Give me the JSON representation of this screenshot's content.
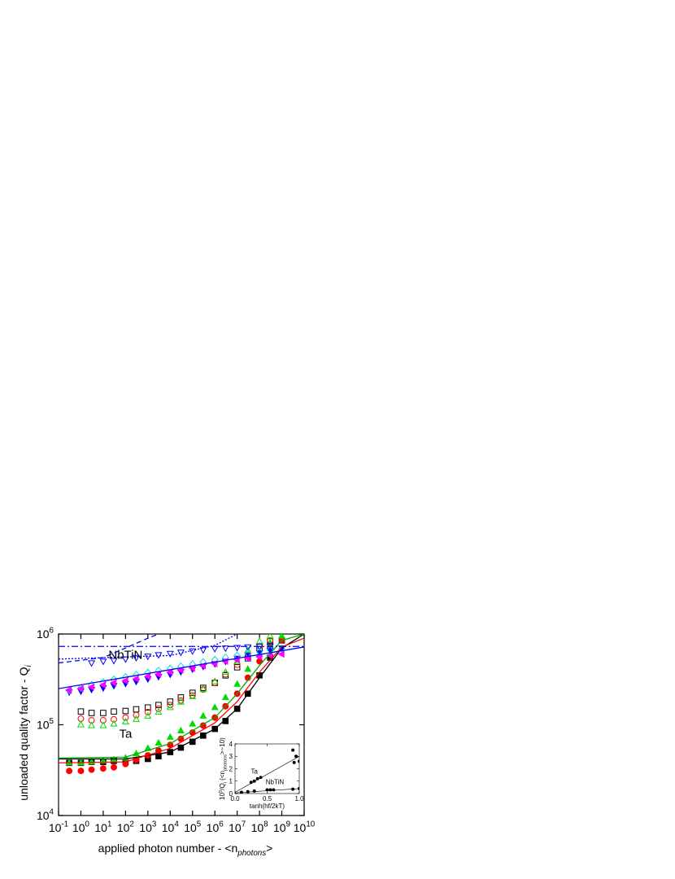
{
  "chart_data": [
    {
      "type": "scatter",
      "log_x": true,
      "log_y": true,
      "xlabel": [
        "applied photon number - <n",
        "photons",
        ">"
      ],
      "ylabel": [
        "unloaded quality factor - Q",
        "i"
      ],
      "xlim": [
        0.1,
        10000000000
      ],
      "ylim": [
        10000,
        1000000
      ],
      "xticks": [
        {
          "value": 0.1,
          "label": "10",
          "exp": "-1"
        },
        {
          "value": 1,
          "label": "10",
          "exp": "0"
        },
        {
          "value": 10,
          "label": "10",
          "exp": "1"
        },
        {
          "value": 100,
          "label": "10",
          "exp": "2"
        },
        {
          "value": 1000,
          "label": "10",
          "exp": "3"
        },
        {
          "value": 10000,
          "label": "10",
          "exp": "4"
        },
        {
          "value": 100000,
          "label": "10",
          "exp": "5"
        },
        {
          "value": 1000000,
          "label": "10",
          "exp": "6"
        },
        {
          "value": 10000000,
          "label": "10",
          "exp": "7"
        },
        {
          "value": 100000000,
          "label": "10",
          "exp": "8"
        },
        {
          "value": 1000000000,
          "label": "10",
          "exp": "9"
        },
        {
          "value": 10000000000,
          "label": "10",
          "exp": "10"
        }
      ],
      "yticks": [
        {
          "value": 10000,
          "label": "10",
          "exp": "4"
        },
        {
          "value": 100000,
          "label": "10",
          "exp": "5"
        },
        {
          "value": 1000000,
          "label": "10",
          "exp": "6"
        }
      ],
      "annotations": [
        {
          "text": "NbTiN",
          "x": 100,
          "y": 530000
        },
        {
          "text": "Ta",
          "x": 100,
          "y": 72000
        }
      ],
      "x": [
        0.3,
        1,
        3,
        10,
        30,
        100,
        300,
        1000,
        3000,
        10000,
        30000,
        100000,
        300000,
        1000000,
        3000000,
        10000000,
        30000000,
        100000000,
        300000000,
        1000000000
      ],
      "series": [
        {
          "marker": "square",
          "filled": true,
          "color": "#000000",
          "values": [
            38000,
            38000,
            39000,
            39000,
            40000,
            39000,
            40000,
            42000,
            45000,
            50000,
            56000,
            65000,
            76000,
            90000,
            110000,
            150000,
            220000,
            350000,
            550000,
            850000
          ]
        },
        {
          "marker": "circle",
          "filled": true,
          "color": "#ff0000",
          "values": [
            31000,
            31000,
            32000,
            33000,
            34000,
            37000,
            41000,
            46000,
            52000,
            60000,
            70000,
            82000,
            98000,
            120000,
            160000,
            220000,
            330000,
            500000,
            700000,
            850000
          ]
        },
        {
          "marker": "triangle-up",
          "filled": true,
          "color": "#00dd00",
          "values": [
            38000,
            38000,
            39000,
            40000,
            41000,
            43000,
            48000,
            55000,
            63000,
            73000,
            86000,
            102000,
            125000,
            155000,
            200000,
            280000,
            410000,
            600000,
            800000,
            950000
          ]
        },
        {
          "marker": "square",
          "filled": false,
          "color": "#000000",
          "values": [
            null,
            140000,
            135000,
            135000,
            140000,
            142000,
            148000,
            155000,
            165000,
            180000,
            200000,
            225000,
            255000,
            290000,
            350000,
            430000,
            540000,
            680000,
            830000,
            null
          ]
        },
        {
          "marker": "circle",
          "filled": false,
          "color": "#ff0000",
          "values": [
            null,
            117000,
            112000,
            112000,
            115000,
            120000,
            128000,
            138000,
            150000,
            165000,
            185000,
            210000,
            245000,
            290000,
            360000,
            460000,
            590000,
            740000,
            850000,
            null
          ]
        },
        {
          "marker": "triangle-up",
          "filled": false,
          "color": "#00dd00",
          "values": [
            null,
            100000,
            98000,
            98000,
            102000,
            108000,
            115000,
            125000,
            138000,
            155000,
            178000,
            205000,
            245000,
            300000,
            380000,
            500000,
            660000,
            830000,
            950000,
            null
          ]
        },
        {
          "marker": "triangle-down",
          "filled": false,
          "color": "#0000ff",
          "values": [
            null,
            null,
            480000,
            500000,
            510000,
            530000,
            550000,
            570000,
            590000,
            610000,
            630000,
            650000,
            670000,
            690000,
            700000,
            710000,
            720000,
            730000,
            740000,
            null
          ]
        },
        {
          "marker": "triangle-down",
          "filled": true,
          "color": "#0000ff",
          "values": [
            230000,
            235000,
            245000,
            255000,
            270000,
            285000,
            300000,
            320000,
            340000,
            360000,
            385000,
            410000,
            440000,
            470000,
            500000,
            540000,
            580000,
            620000,
            660000,
            700000
          ]
        },
        {
          "marker": "diamond",
          "filled": false,
          "color": "#00dddd",
          "values": [
            240000,
            255000,
            275000,
            295000,
            315000,
            335000,
            355000,
            375000,
            395000,
            415000,
            440000,
            465000,
            490000,
            520000,
            550000,
            580000,
            610000,
            640000,
            670000,
            690000
          ]
        },
        {
          "marker": "triangle-left",
          "filled": true,
          "color": "#ff00ff",
          "values": [
            240000,
            250000,
            260000,
            275000,
            290000,
            305000,
            320000,
            340000,
            360000,
            380000,
            400000,
            420000,
            445000,
            470000,
            500000,
            520000,
            540000,
            560000,
            580000,
            600000
          ]
        },
        {
          "marker": "line",
          "color": "#000000",
          "x": [
            0.1,
            100,
            10000,
            1000000,
            10000000,
            100000000,
            1000000000,
            10000000000
          ],
          "values": [
            42000,
            42000,
            50000,
            90000,
            150000,
            330000,
            700000,
            1000000
          ]
        },
        {
          "marker": "line",
          "color": "#ff0000",
          "x": [
            0.1,
            100,
            10000,
            1000000,
            10000000,
            100000000,
            1000000000,
            10000000000
          ],
          "values": [
            38000,
            39000,
            55000,
            105000,
            180000,
            380000,
            720000,
            900000
          ]
        },
        {
          "marker": "line",
          "color": "#00aa00",
          "x": [
            0.1,
            100,
            10000,
            1000000,
            10000000,
            100000000,
            1000000000,
            10000000000
          ],
          "values": [
            43000,
            44000,
            62000,
            120000,
            220000,
            450000,
            850000,
            1000000
          ]
        },
        {
          "marker": "line",
          "color": "#0000ff",
          "x": [
            0.1,
            10000000000
          ],
          "values": [
            250000,
            720000
          ]
        },
        {
          "marker": "line",
          "color": "#0000ff",
          "dash": "6 4",
          "x": [
            0.1,
            10,
            100,
            1000,
            3000
          ],
          "values": [
            480000,
            550000,
            700000,
            900000,
            1000000
          ]
        },
        {
          "marker": "line",
          "color": "#0000ff",
          "dash": "2 2",
          "x": [
            0.1,
            10000,
            1000000,
            10000000
          ],
          "values": [
            530000,
            580000,
            750000,
            1000000
          ]
        },
        {
          "marker": "line",
          "color": "#0000ff",
          "dash": "8 3 2 3",
          "x": [
            0.1,
            10000000000
          ],
          "values": [
            730000,
            730000
          ]
        }
      ]
    },
    {
      "type": "scatter",
      "log_x": false,
      "log_y": false,
      "xlabel": [
        "tanh(hf/2kT)"
      ],
      "ylabel": [
        "10",
        "5",
        "/Q",
        "i",
        " (<n",
        "photons",
        ">~10)"
      ],
      "xlim": [
        0,
        1
      ],
      "ylim": [
        0,
        4
      ],
      "xticks": [
        {
          "value": 0,
          "label": "0.0"
        },
        {
          "value": 0.5,
          "label": "0.5"
        },
        {
          "value": 1,
          "label": "1.0"
        }
      ],
      "yticks": [
        0,
        1,
        2,
        3,
        4
      ],
      "annotations": [
        {
          "text": "Ta",
          "x": 0.3,
          "y": 1.6
        },
        {
          "text": "NbTiN",
          "x": 0.62,
          "y": 0.75
        }
      ],
      "series": [
        {
          "marker": "circle",
          "filled": true,
          "color": "#000000",
          "x": [
            0.25,
            0.3,
            0.35,
            0.4,
            0.9,
            0.92,
            0.95,
            1
          ],
          "values": [
            0.9,
            1.0,
            1.2,
            1.3,
            3.5,
            2.5,
            3.0,
            2.6
          ]
        },
        {
          "marker": "circle",
          "filled": true,
          "color": "#000000",
          "x": [
            0.1,
            0.2,
            0.3,
            0.5,
            0.55,
            0.6,
            0.9,
            1
          ],
          "values": [
            0.1,
            0.15,
            0.2,
            0.3,
            0.3,
            0.3,
            0.35,
            0.4
          ]
        },
        {
          "marker": "line",
          "color": "#000000",
          "x": [
            0,
            1
          ],
          "values": [
            0.1,
            3.0
          ]
        },
        {
          "marker": "line",
          "color": "#000000",
          "x": [
            0,
            1
          ],
          "values": [
            0.05,
            0.4
          ]
        }
      ]
    }
  ]
}
